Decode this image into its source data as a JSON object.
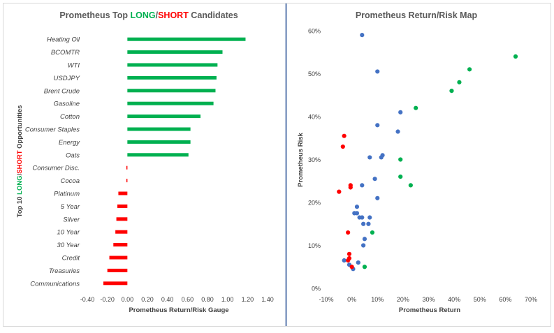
{
  "colors": {
    "long": "#00b050",
    "short": "#ff0000",
    "neutral": "#4472c4",
    "divider": "#2f5597",
    "axis": "#bfbfbf",
    "grid": "#d9d9d9",
    "text": "#404040",
    "title_text": "#595959"
  },
  "left_chart": {
    "title_prefix": "Prometheus Top ",
    "title_long": "LONG",
    "title_sep": "/",
    "title_short": "SHORT",
    "title_suffix": " Candidates",
    "ylabel_prefix": "Top 10 ",
    "ylabel_long": "LONG",
    "ylabel_sep": "/",
    "ylabel_short": "SHORT",
    "ylabel_suffix": " Opportunities",
    "xlabel": "Prometheus Return/Risk Gauge"
  },
  "right_chart": {
    "title": "Prometheus Return/Risk Map",
    "xlabel": "Prometheus Return",
    "ylabel": "Prometheus Risk"
  },
  "chart_data": [
    {
      "type": "bar",
      "orientation": "horizontal",
      "categories": [
        "Heating Oil",
        "BCOMTR",
        "WTI",
        "USDJPY",
        "Brent Crude",
        "Gasoline",
        "Cotton",
        "Consumer Staples",
        "Energy",
        "Oats",
        "Consumer Disc.",
        "Cocoa",
        "Platinum",
        "5 Year",
        "Silver",
        "10 Year",
        "30 Year",
        "Credit",
        "Treasuries",
        "Communications"
      ],
      "values": [
        1.18,
        0.95,
        0.9,
        0.89,
        0.88,
        0.86,
        0.73,
        0.63,
        0.63,
        0.61,
        -0.01,
        -0.01,
        -0.09,
        -0.1,
        -0.11,
        -0.12,
        -0.14,
        -0.18,
        -0.2,
        -0.24
      ],
      "xlim": [
        -0.4,
        1.4
      ],
      "xticks": [
        "-0.40",
        "-0.20",
        "0.00",
        "0.20",
        "0.40",
        "0.60",
        "0.80",
        "1.00",
        "1.20",
        "1.40"
      ],
      "xtick_values": [
        -0.4,
        -0.2,
        0,
        0.2,
        0.4,
        0.6,
        0.8,
        1.0,
        1.2,
        1.4
      ]
    },
    {
      "type": "scatter",
      "xlim": [
        -10,
        70
      ],
      "ylim": [
        0,
        60
      ],
      "xticks": [
        "-10%",
        "0%",
        "10%",
        "20%",
        "30%",
        "40%",
        "50%",
        "60%",
        "70%"
      ],
      "xtick_values": [
        -10,
        0,
        10,
        20,
        30,
        40,
        50,
        60,
        70
      ],
      "yticks": [
        "0%",
        "10%",
        "20%",
        "30%",
        "40%",
        "50%",
        "60%"
      ],
      "ytick_values": [
        0,
        10,
        20,
        30,
        40,
        50,
        60
      ],
      "series": [
        {
          "group": "neutral",
          "points": [
            [
              4,
              59
            ],
            [
              10,
              50.5
            ],
            [
              19,
              41
            ],
            [
              10,
              38
            ],
            [
              18,
              36.5
            ],
            [
              12,
              31
            ],
            [
              11.5,
              30.5
            ],
            [
              7,
              30.5
            ],
            [
              9,
              25.5
            ],
            [
              4,
              24
            ],
            [
              10,
              21
            ],
            [
              2,
              19
            ],
            [
              1,
              17.5
            ],
            [
              2,
              17.5
            ],
            [
              3,
              16.5
            ],
            [
              4,
              16.5
            ],
            [
              7,
              16.5
            ],
            [
              4.5,
              15
            ],
            [
              6.5,
              15
            ],
            [
              5,
              11.5
            ],
            [
              4.5,
              10
            ],
            [
              -3,
              6.5
            ],
            [
              -1,
              5.5
            ],
            [
              2.5,
              6
            ],
            [
              0.5,
              4.5
            ]
          ]
        },
        {
          "group": "long",
          "points": [
            [
              64,
              54
            ],
            [
              46,
              51
            ],
            [
              42,
              48
            ],
            [
              39,
              46
            ],
            [
              25,
              42
            ],
            [
              19,
              30
            ],
            [
              19,
              26
            ],
            [
              23,
              24
            ],
            [
              8,
              13
            ],
            [
              5,
              5
            ]
          ]
        },
        {
          "group": "short",
          "points": [
            [
              -3,
              35.5
            ],
            [
              -3.5,
              33
            ],
            [
              -0.5,
              24
            ],
            [
              -0.5,
              23.5
            ],
            [
              -5,
              22.5
            ],
            [
              -1.5,
              13
            ],
            [
              -1,
              8
            ],
            [
              -1,
              7
            ],
            [
              -1.5,
              6.5
            ],
            [
              0,
              5
            ]
          ]
        }
      ]
    }
  ]
}
